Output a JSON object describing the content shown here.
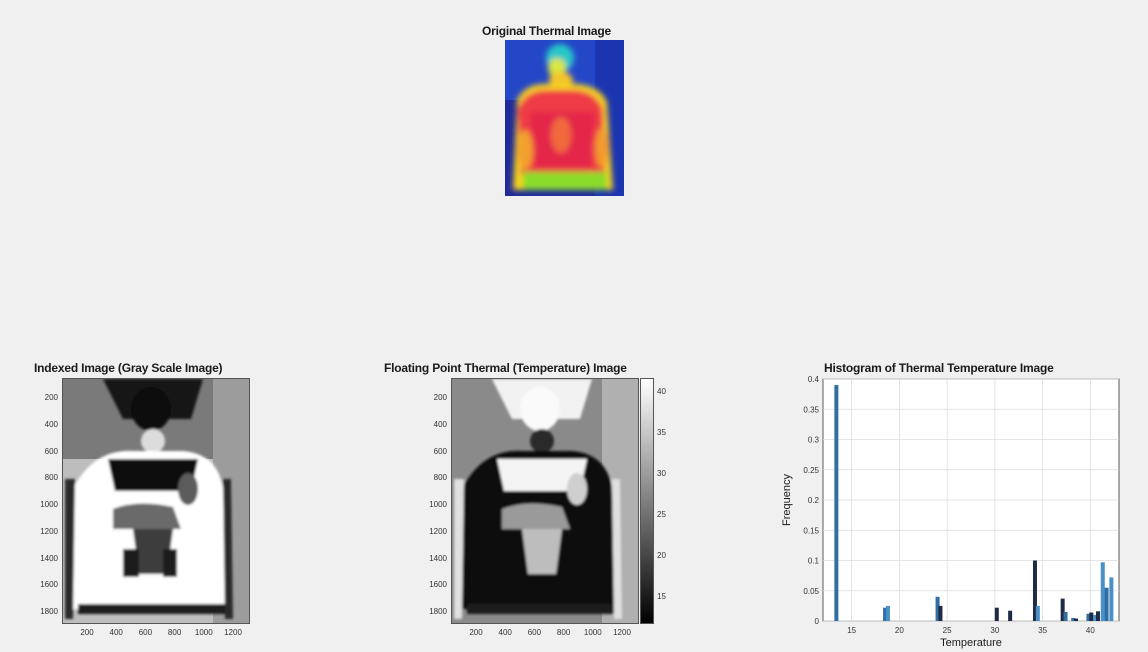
{
  "original": {
    "title": "Original Thermal Image"
  },
  "indexed": {
    "title": "Indexed Image (Gray Scale Image)",
    "yticks": [
      "200",
      "400",
      "600",
      "800",
      "1000",
      "1200",
      "1400",
      "1600",
      "1800"
    ],
    "xticks": [
      "200",
      "400",
      "600",
      "800",
      "1000",
      "1200"
    ]
  },
  "floating": {
    "title": "Floating Point Thermal (Temperature) Image",
    "yticks": [
      "200",
      "400",
      "600",
      "800",
      "1000",
      "1200",
      "1400",
      "1600",
      "1800"
    ],
    "xticks": [
      "200",
      "400",
      "600",
      "800",
      "1000",
      "1200"
    ],
    "colorbar_ticks": [
      "40",
      "35",
      "30",
      "25",
      "20",
      "15"
    ]
  },
  "colors": {
    "bar_dark": "#1f2a44",
    "bar_blue": "#2f6fa3",
    "bar_light": "#4a90c8",
    "background": "#f0f0f0"
  },
  "chart_data": {
    "type": "bar",
    "title": "Histogram of Thermal Temperature Image",
    "xlabel": "Temperature",
    "ylabel": "Frequency",
    "xlim": [
      12,
      43
    ],
    "ylim": [
      0,
      0.4
    ],
    "grid": true,
    "xticks": [
      15,
      20,
      25,
      30,
      35,
      40
    ],
    "yticks": [
      0,
      0.05,
      0.1,
      0.15,
      0.2,
      0.25,
      0.3,
      0.35,
      0.4
    ],
    "bars": [
      {
        "x": 13.4,
        "y": 0.39,
        "tone": "blue"
      },
      {
        "x": 18.5,
        "y": 0.022,
        "tone": "blue"
      },
      {
        "x": 18.8,
        "y": 0.025,
        "tone": "light"
      },
      {
        "x": 24.0,
        "y": 0.04,
        "tone": "blue"
      },
      {
        "x": 24.3,
        "y": 0.025,
        "tone": "dark"
      },
      {
        "x": 30.2,
        "y": 0.022,
        "tone": "dark"
      },
      {
        "x": 31.6,
        "y": 0.017,
        "tone": "dark"
      },
      {
        "x": 34.2,
        "y": 0.1,
        "tone": "dark"
      },
      {
        "x": 34.5,
        "y": 0.025,
        "tone": "light"
      },
      {
        "x": 37.1,
        "y": 0.037,
        "tone": "dark"
      },
      {
        "x": 37.4,
        "y": 0.015,
        "tone": "blue"
      },
      {
        "x": 38.2,
        "y": 0.005,
        "tone": "blue"
      },
      {
        "x": 38.5,
        "y": 0.004,
        "tone": "dark"
      },
      {
        "x": 39.8,
        "y": 0.012,
        "tone": "blue"
      },
      {
        "x": 40.1,
        "y": 0.014,
        "tone": "dark"
      },
      {
        "x": 40.5,
        "y": 0.01,
        "tone": "light"
      },
      {
        "x": 40.8,
        "y": 0.016,
        "tone": "dark"
      },
      {
        "x": 41.3,
        "y": 0.097,
        "tone": "light"
      },
      {
        "x": 41.7,
        "y": 0.055,
        "tone": "blue"
      },
      {
        "x": 42.2,
        "y": 0.072,
        "tone": "light"
      }
    ]
  }
}
